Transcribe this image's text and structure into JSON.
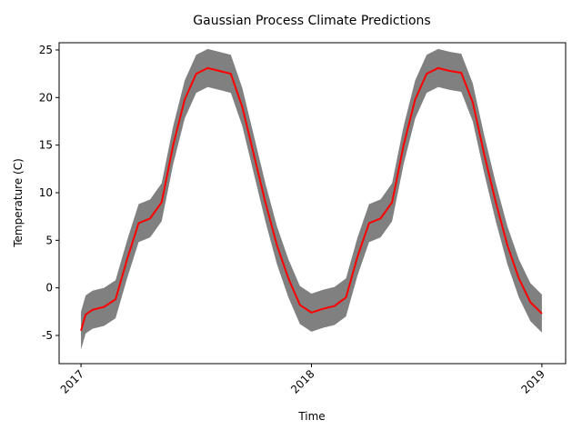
{
  "chart_data": {
    "type": "band-line",
    "title": "Gaussian Process Climate Predictions",
    "x_label": "Time",
    "y_label": "Temperature (C)",
    "x": [
      2017,
      2017.02,
      2017.05,
      2017.1,
      2017.15,
      2017.2,
      2017.25,
      2017.3,
      2017.35,
      2017.4,
      2017.45,
      2017.5,
      2017.55,
      2017.6,
      2017.65,
      2017.7,
      2017.75,
      2017.8,
      2017.85,
      2017.9,
      2017.95,
      2018,
      2018.05,
      2018.1,
      2018.15,
      2018.2,
      2018.25,
      2018.3,
      2018.35,
      2018.4,
      2018.45,
      2018.5,
      2018.55,
      2018.6,
      2018.65,
      2018.7,
      2018.75,
      2018.8,
      2018.85,
      2018.9,
      2018.95,
      2019
    ],
    "values": [
      -4.5,
      -2.8,
      -2.3,
      -2.0,
      -1.2,
      3.0,
      6.8,
      7.3,
      9.0,
      15.0,
      19.8,
      22.5,
      23.1,
      22.8,
      22.5,
      19.0,
      14.0,
      9.0,
      4.5,
      1.0,
      -1.8,
      -2.6,
      -2.2,
      -1.9,
      -1.0,
      3.3,
      6.8,
      7.3,
      9.0,
      15.0,
      19.8,
      22.5,
      23.1,
      22.8,
      22.6,
      19.5,
      14.0,
      9.0,
      4.5,
      1.0,
      -1.5,
      -2.7
    ],
    "lower": [
      -6.5,
      -4.8,
      -4.3,
      -4.0,
      -3.2,
      1.0,
      4.8,
      5.3,
      7.0,
      13.0,
      17.8,
      20.5,
      21.1,
      20.8,
      20.5,
      17.0,
      12.0,
      7.0,
      2.5,
      -1.0,
      -3.8,
      -4.6,
      -4.2,
      -3.9,
      -3.0,
      1.3,
      4.8,
      5.3,
      7.0,
      13.0,
      17.8,
      20.5,
      21.1,
      20.8,
      20.6,
      17.5,
      12.0,
      7.0,
      2.5,
      -1.0,
      -3.5,
      -4.7
    ],
    "upper": [
      -2.5,
      -0.8,
      -0.3,
      0.0,
      0.8,
      5.0,
      8.8,
      9.3,
      11.0,
      17.0,
      21.8,
      24.5,
      25.1,
      24.8,
      24.5,
      21.0,
      16.0,
      11.0,
      6.5,
      3.0,
      0.2,
      -0.6,
      -0.2,
      0.1,
      1.0,
      5.3,
      8.8,
      9.3,
      11.0,
      17.0,
      21.8,
      24.5,
      25.1,
      24.8,
      24.6,
      21.5,
      16.0,
      11.0,
      6.5,
      3.0,
      0.5,
      -0.7
    ],
    "color": "#ff0000",
    "band_color": "#808080",
    "xlim": [
      2016.905,
      2019.103
    ],
    "xticks": [
      2017,
      2018,
      2019
    ],
    "ylim": [
      -7.96,
      25.76
    ],
    "yticks": [
      -5,
      0,
      5,
      10,
      15,
      20,
      25
    ]
  }
}
